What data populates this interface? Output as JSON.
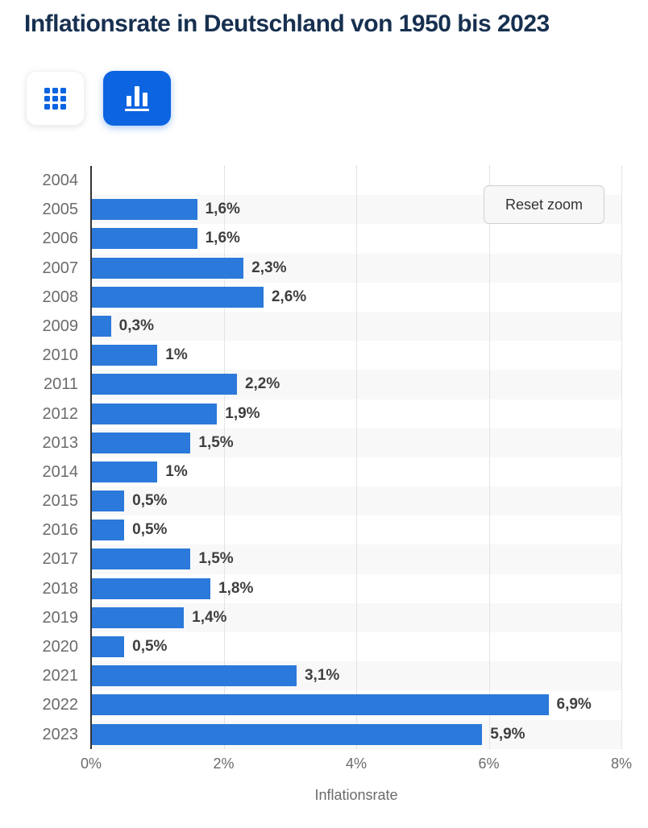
{
  "page": {
    "title": "Inflationsrate in Deutschland von 1950 bis 2023"
  },
  "toolbar": {
    "active_view": "chart",
    "buttons": [
      {
        "name": "table-view",
        "icon": "grid-icon",
        "active": false
      },
      {
        "name": "chart-view",
        "icon": "bar-chart-icon",
        "active": true
      }
    ]
  },
  "chart": {
    "reset_zoom_label": "Reset zoom"
  },
  "chart_data": {
    "type": "bar",
    "orientation": "horizontal",
    "title": "Inflationsrate in Deutschland von 1950 bis 2023",
    "xlabel": "Inflationsrate",
    "ylabel": "",
    "categories": [
      "2004",
      "2005",
      "2006",
      "2007",
      "2008",
      "2009",
      "2010",
      "2011",
      "2012",
      "2013",
      "2014",
      "2015",
      "2016",
      "2017",
      "2018",
      "2019",
      "2020",
      "2021",
      "2022",
      "2023"
    ],
    "values": [
      null,
      1.6,
      1.6,
      2.3,
      2.6,
      0.3,
      1,
      2.2,
      1.9,
      1.5,
      1,
      0.5,
      0.5,
      1.5,
      1.8,
      1.4,
      0.5,
      3.1,
      6.9,
      5.9
    ],
    "value_labels": [
      "",
      "1,6%",
      "1,6%",
      "2,3%",
      "2,6%",
      "0,3%",
      "1%",
      "2,2%",
      "1,9%",
      "1,5%",
      "1%",
      "0,5%",
      "0,5%",
      "1,5%",
      "1,8%",
      "1,4%",
      "0,5%",
      "3,1%",
      "6,9%",
      "5,9%"
    ],
    "xlim": [
      0,
      8
    ],
    "x_tick_values": [
      0,
      2,
      4,
      6,
      8
    ],
    "x_ticks": [
      "0%",
      "2%",
      "4%",
      "6%",
      "8%"
    ],
    "grid": "vertical-dotted",
    "legend": "none",
    "row_banding": "alternate-odd-rows",
    "bar_color": "#2b79da",
    "band_color": "#f8f8f8"
  },
  "colors": {
    "accent": "#0d64e0",
    "title_color": "#173050",
    "bar_blue": "#2b79da",
    "band_gray": "#f8f8f8",
    "grid_gray": "#cbcbcb",
    "axis_dark": "#333333",
    "label_gray": "#6b6b6b",
    "value_dark": "#3f3f3f"
  }
}
